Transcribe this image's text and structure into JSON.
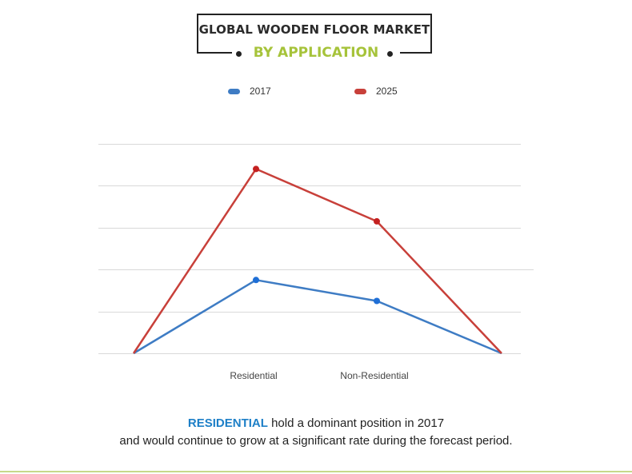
{
  "header": {
    "title": "GLOBAL WOODEN FLOOR MARKET",
    "subtitle": "BY APPLICATION",
    "subtitle_color": "#a6c33a"
  },
  "colors": {
    "series_2017": "#3e7cc4",
    "series_2025": "#c8403a",
    "marker_2017": "#1f6fd6",
    "marker_2025": "#c42020",
    "highlight": "#1d7fc7",
    "bottom_rule": "#c7d98a",
    "grid": "#d9d9d9"
  },
  "legend": [
    {
      "name": "2017"
    },
    {
      "name": "2025"
    }
  ],
  "chart_data": {
    "type": "line",
    "title": "GLOBAL WOODEN FLOOR MARKET",
    "subtitle": "BY APPLICATION",
    "xlabel": "",
    "ylabel": "",
    "categories": [
      "",
      "Residential",
      "Non-Residential",
      ""
    ],
    "series": [
      {
        "name": "2017",
        "values": [
          0,
          35,
          25,
          0
        ]
      },
      {
        "name": "2025",
        "values": [
          0,
          88,
          63,
          0
        ]
      }
    ],
    "ylim": [
      0,
      100
    ],
    "grid": true,
    "legend_position": "top"
  },
  "caption": {
    "highlight": "RESIDENTIAL",
    "line1_rest": " hold a dominant position in 2017",
    "line2": "and would continue to grow at a significant rate during the forecast period."
  }
}
